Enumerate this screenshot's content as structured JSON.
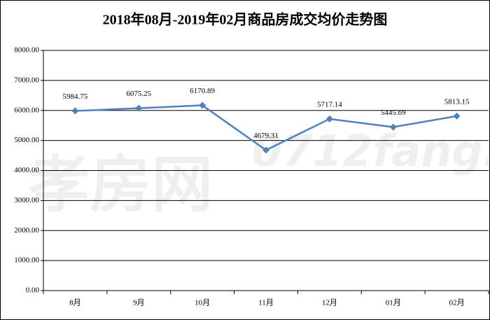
{
  "chart_data": {
    "type": "line",
    "title": "2018年08月-2019年02月商品房成交均价走势图",
    "watermark": [
      "孝房网",
      "0712fang.com"
    ],
    "categories": [
      "8月",
      "9月",
      "10月",
      "11月",
      "12月",
      "01月",
      "02月"
    ],
    "values": [
      5984.75,
      6075.25,
      6170.89,
      4679.31,
      5717.14,
      5445.69,
      5813.15
    ],
    "color": "#4f81bd",
    "ylim": [
      0,
      8000
    ],
    "yticks": [
      {
        "value": 0,
        "label": "0.00"
      },
      {
        "value": 1000,
        "label": "1000.00"
      },
      {
        "value": 2000,
        "label": "2000.00"
      },
      {
        "value": 3000,
        "label": "3000.00"
      },
      {
        "value": 4000,
        "label": "4000.00"
      },
      {
        "value": 5000,
        "label": "5000.00"
      },
      {
        "value": 6000,
        "label": "6000.00"
      },
      {
        "value": 7000,
        "label": "7000.00"
      },
      {
        "value": 8000,
        "label": "8000.00"
      }
    ],
    "grid": true
  }
}
